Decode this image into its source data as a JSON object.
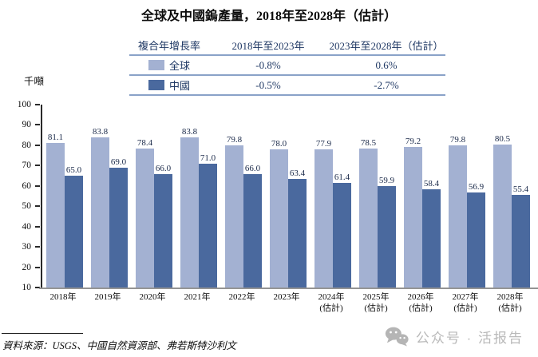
{
  "title": "全球及中國鎢產量，2018年至2028年（估計）",
  "cagr_table": {
    "header": [
      "複合年增長率",
      "2018年至2023年",
      "2023年至2028年（估計）"
    ],
    "rows": [
      {
        "label": "全球",
        "series": "global",
        "period1": "-0.8%",
        "period2": "0.6%"
      },
      {
        "label": "中國",
        "series": "china",
        "period1": "-0.5%",
        "period2": "-2.7%"
      }
    ]
  },
  "chart_data": {
    "type": "bar",
    "title": "全球及中國鎢產量，2018年至2028年（估計）",
    "ylabel": "千噸",
    "ylim": [
      10,
      100
    ],
    "ytick_step": 10,
    "grid": false,
    "legend_position": "table-top",
    "categories": [
      "2018年",
      "2019年",
      "2020年",
      "2021年",
      "2022年",
      "2023年",
      "2024年\n(估計)",
      "2025年\n(估計)",
      "2026年\n(估計)",
      "2027年\n(估計)",
      "2028年\n(估計)"
    ],
    "series": [
      {
        "name": "全球",
        "color": "#a3b1d2",
        "values": [
          81.1,
          83.8,
          78.4,
          83.8,
          79.8,
          78.0,
          77.9,
          78.5,
          79.2,
          79.8,
          80.5
        ]
      },
      {
        "name": "中國",
        "color": "#4a699e",
        "values": [
          65.0,
          69.0,
          66.0,
          71.0,
          66.0,
          63.4,
          61.4,
          59.9,
          58.4,
          56.9,
          55.4
        ]
      }
    ]
  },
  "source_note": "資料來源：USGS、中國自然資源部、弗若斯特沙利文",
  "watermark": {
    "icon": "wechat-icon",
    "text": "公众号 · 活报告"
  },
  "colors": {
    "global_bar": "#a3b1d2",
    "china_bar": "#4a699e",
    "table_text": "#1f3864",
    "table_line": "#8aa2c8",
    "axis_line": "#2a2a2a",
    "baseline": "#949494",
    "watermark": "#b9b9b9"
  }
}
